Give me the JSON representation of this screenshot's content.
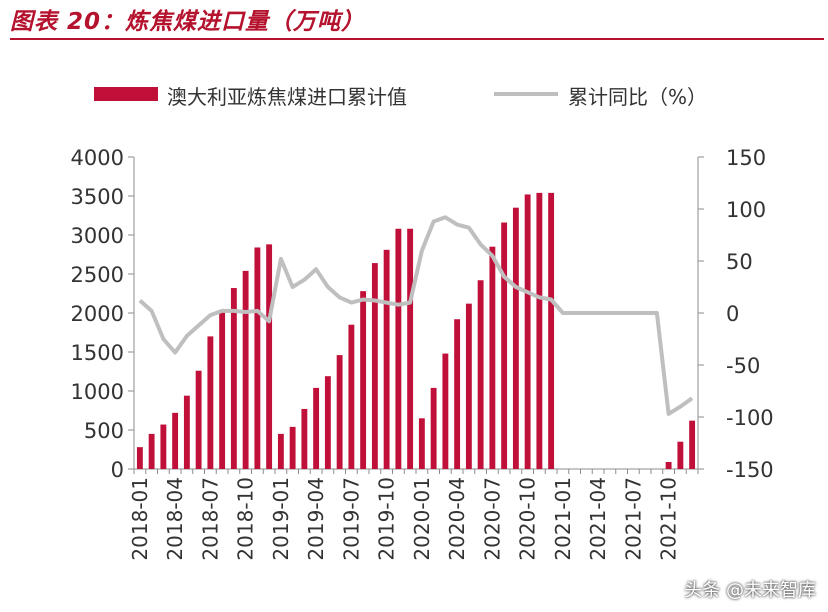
{
  "title": "图表 20：炼焦煤进口量（万吨）",
  "watermark": "头条 @未来智库",
  "colors": {
    "bar": "#c0103a",
    "line": "#bfbfbf",
    "title": "#b5122e",
    "text": "#333333"
  },
  "chart_data": {
    "type": "bar+line",
    "legend": {
      "position": "top",
      "bar_label": "澳大利亚炼焦煤进口累计值",
      "line_label": "累计同比（%）"
    },
    "x": [
      "2018-01",
      "2018-02",
      "2018-03",
      "2018-04",
      "2018-05",
      "2018-06",
      "2018-07",
      "2018-08",
      "2018-09",
      "2018-10",
      "2018-11",
      "2018-12",
      "2019-01",
      "2019-02",
      "2019-03",
      "2019-04",
      "2019-05",
      "2019-06",
      "2019-07",
      "2019-08",
      "2019-09",
      "2019-10",
      "2019-11",
      "2019-12",
      "2020-01",
      "2020-02",
      "2020-03",
      "2020-04",
      "2020-05",
      "2020-06",
      "2020-07",
      "2020-08",
      "2020-09",
      "2020-10",
      "2020-11",
      "2020-12",
      "2021-01",
      "2021-02",
      "2021-03",
      "2021-04",
      "2021-05",
      "2021-06",
      "2021-07",
      "2021-08",
      "2021-09",
      "2021-10",
      "2021-11",
      "2021-12"
    ],
    "x_tick_labels": [
      "2018-01",
      "2018-04",
      "2018-07",
      "2018-10",
      "2019-01",
      "2019-04",
      "2019-07",
      "2019-10",
      "2020-01",
      "2020-04",
      "2020-07",
      "2020-10",
      "2021-01",
      "2021-04",
      "2021-07",
      "2021-10"
    ],
    "bar_series": {
      "name": "澳大利亚炼焦煤进口累计值",
      "values": [
        280,
        450,
        570,
        720,
        940,
        1260,
        1700,
        2020,
        2320,
        2540,
        2840,
        2880,
        450,
        540,
        770,
        1040,
        1190,
        1460,
        1850,
        2280,
        2640,
        2810,
        3080,
        3080,
        650,
        1040,
        1480,
        1920,
        2120,
        2420,
        2850,
        3160,
        3350,
        3520,
        3540,
        3540,
        null,
        null,
        null,
        null,
        null,
        null,
        null,
        null,
        null,
        90,
        350,
        620
      ]
    },
    "line_series": {
      "name": "累计同比（%）",
      "values": [
        12,
        2,
        -25,
        -38,
        -22,
        -12,
        -2,
        2,
        2,
        1,
        2,
        -8,
        52,
        25,
        32,
        42,
        25,
        15,
        10,
        13,
        12,
        10,
        8,
        10,
        60,
        88,
        92,
        85,
        82,
        66,
        55,
        35,
        25,
        20,
        15,
        13,
        0,
        0,
        0,
        0,
        0,
        0,
        0,
        0,
        0,
        -97,
        -90,
        -82
      ]
    },
    "y_left": {
      "min": 0,
      "max": 4000,
      "ticks": [
        0,
        500,
        1000,
        1500,
        2000,
        2500,
        3000,
        3500,
        4000
      ]
    },
    "y_right": {
      "min": -150,
      "max": 150,
      "ticks": [
        -150,
        -100,
        -50,
        0,
        50,
        100,
        150
      ]
    }
  }
}
